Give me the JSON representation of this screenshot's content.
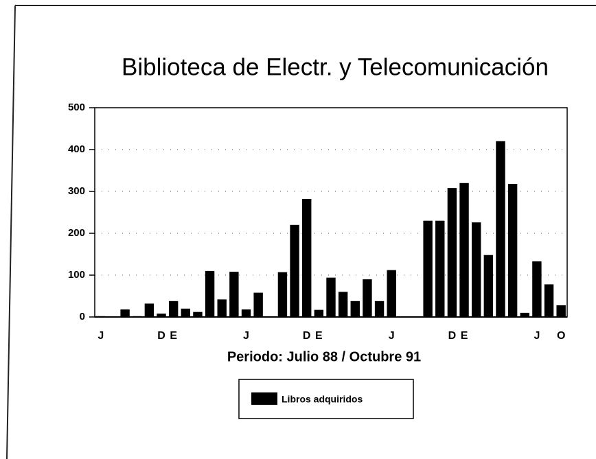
{
  "chart_data": {
    "type": "bar",
    "title": "Biblioteca de Electr. y Telecomunicación",
    "x_label": "Periodo: Julio 88 / Octubre 91",
    "categories": [
      "J",
      null,
      null,
      null,
      null,
      "D",
      "E",
      null,
      null,
      null,
      null,
      null,
      "J",
      null,
      null,
      null,
      null,
      "D",
      "E",
      null,
      null,
      null,
      null,
      null,
      "J",
      null,
      null,
      null,
      null,
      "D",
      "E",
      null,
      null,
      null,
      null,
      null,
      "J",
      null,
      "O"
    ],
    "series": [
      {
        "name": "Libros adquiridos",
        "color": "#000000",
        "values": [
          2,
          0,
          18,
          2,
          32,
          8,
          38,
          20,
          12,
          110,
          42,
          108,
          18,
          58,
          0,
          107,
          220,
          282,
          17,
          94,
          60,
          38,
          90,
          38,
          112,
          0,
          0,
          230,
          230,
          308,
          320,
          226,
          148,
          420,
          318,
          10,
          133,
          78,
          28
        ]
      }
    ],
    "ylim": [
      0,
      500
    ],
    "yticks": [
      0,
      100,
      200,
      300,
      400,
      500
    ],
    "grid": true,
    "legend": "bottom"
  }
}
